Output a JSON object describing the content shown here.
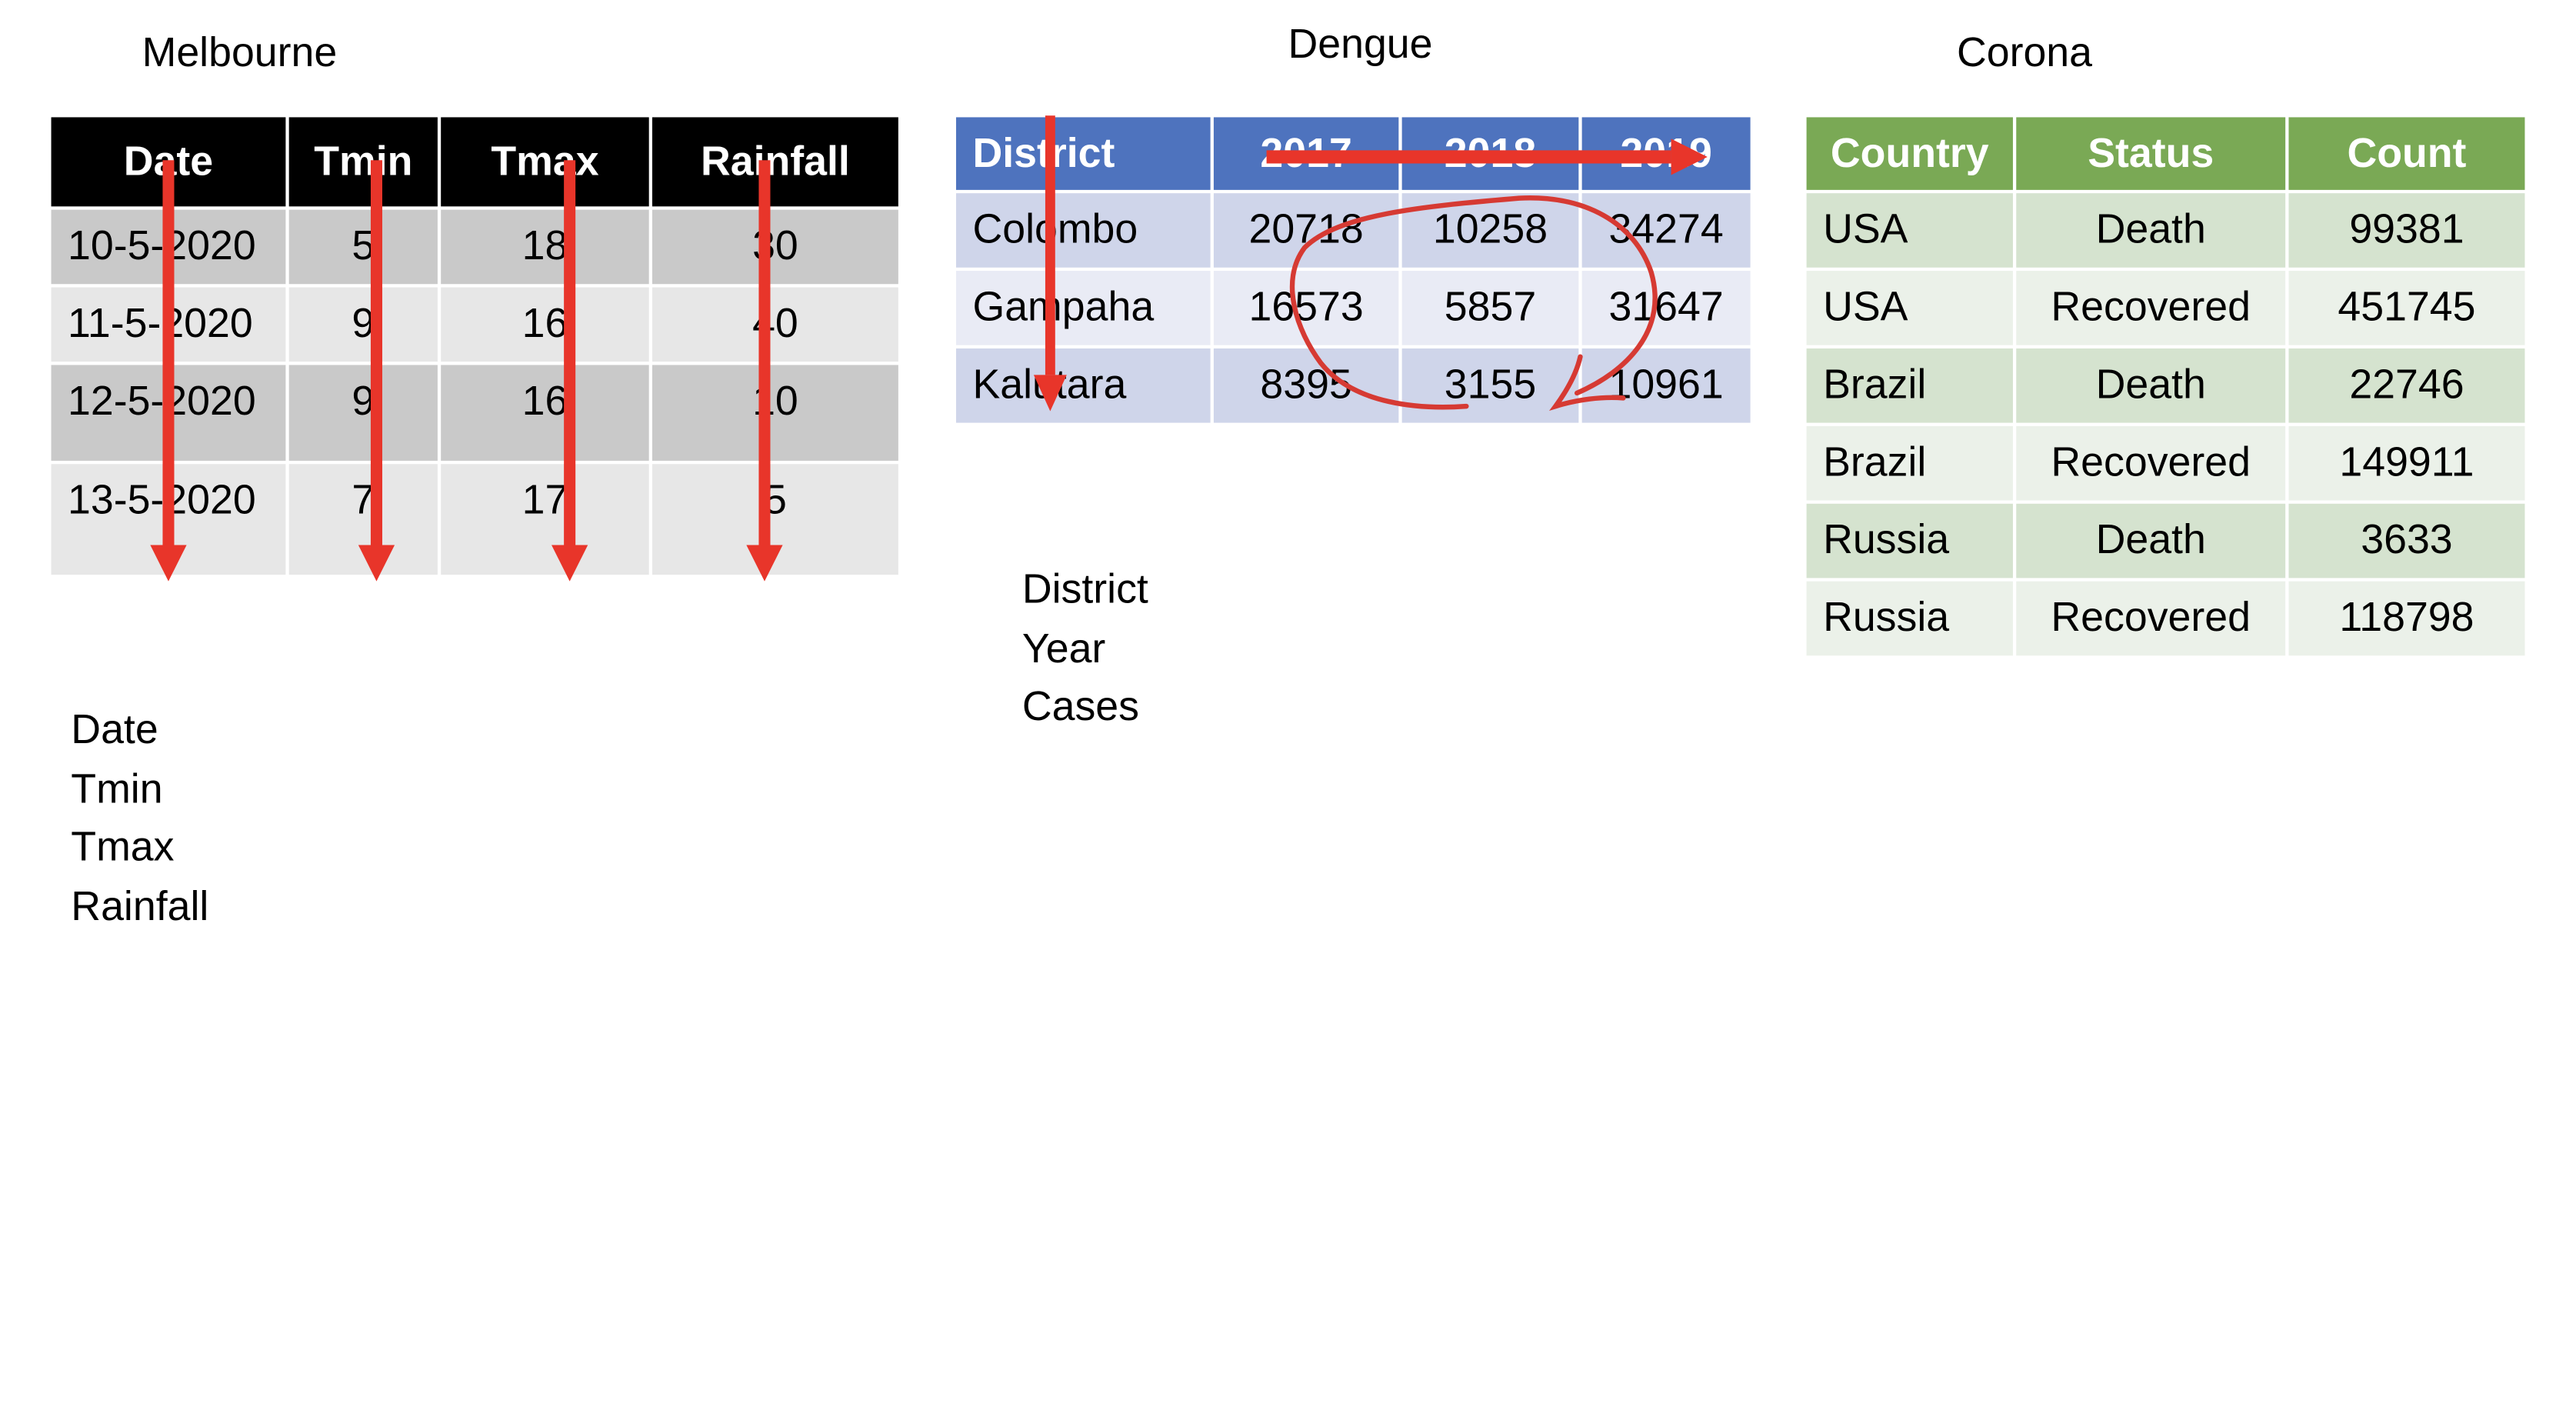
{
  "melbourne": {
    "title": "Melbourne",
    "headers": [
      "Date",
      "Tmin",
      "Tmax",
      "Rainfall"
    ],
    "rows": [
      [
        "10-5-2020",
        "5",
        "18",
        "30"
      ],
      [
        "11-5-2020",
        "9",
        "16",
        "40"
      ],
      [
        "12-5-2020",
        "9",
        "16",
        "10"
      ],
      [
        "13-5-2020",
        "7",
        "17",
        "5"
      ]
    ],
    "variables": [
      "Date",
      "Tmin",
      "Tmax",
      "Rainfall"
    ]
  },
  "dengue": {
    "title": "Dengue",
    "headers": [
      "District",
      "2017",
      "2018",
      "2019"
    ],
    "rows": [
      [
        "Colombo",
        "20718",
        "10258",
        "34274"
      ],
      [
        "Gampaha",
        "16573",
        "5857",
        "31647"
      ],
      [
        "Kalutara",
        "8395",
        "3155",
        "10961"
      ]
    ],
    "variables": [
      "District",
      "Year",
      "Cases"
    ]
  },
  "corona": {
    "title": "Corona",
    "headers": [
      "Country",
      "Status",
      "Count"
    ],
    "rows": [
      [
        "USA",
        "Death",
        "99381"
      ],
      [
        "USA",
        "Recovered",
        "451745"
      ],
      [
        "Brazil",
        "Death",
        "22746"
      ],
      [
        "Brazil",
        "Recovered",
        "149911"
      ],
      [
        "Russia",
        "Death",
        "3633"
      ],
      [
        "Russia",
        "Recovered",
        "118798"
      ]
    ]
  },
  "colors": {
    "arrow": "#e8352a",
    "melbourne_header": "#000000",
    "dengue_header": "#4e73be",
    "corona_header": "#7aa955"
  }
}
